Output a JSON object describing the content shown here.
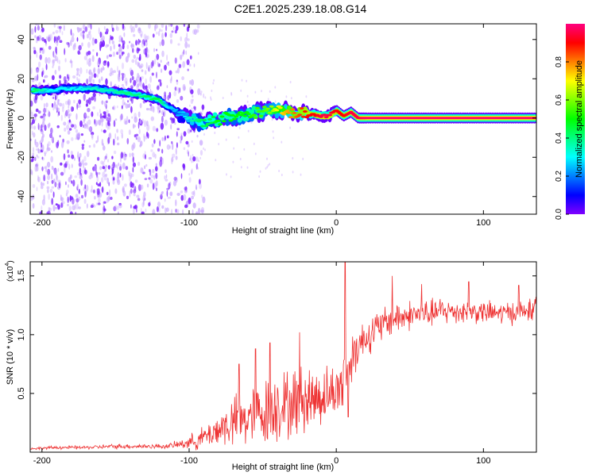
{
  "title": "C2E1.2025.239.18.08.G14",
  "chart_data": [
    {
      "type": "heatmap",
      "name": "spectrogram",
      "xlabel": "Height of straight line (km)",
      "ylabel": "Frequency (Hz)",
      "xlim": [
        -208,
        136
      ],
      "ylim": [
        -49,
        48
      ],
      "xticks": [
        -200,
        -100,
        0,
        100
      ],
      "yticks": [
        -40,
        -20,
        0,
        20,
        40
      ],
      "signal_track": {
        "x": [
          -206,
          -195,
          -185,
          -175,
          -165,
          -155,
          -145,
          -135,
          -125,
          -120,
          -115,
          -110,
          -105,
          -100,
          -95,
          -90,
          -85,
          -80,
          -75,
          -70,
          -65,
          -60,
          -55,
          -50,
          -45,
          -40,
          -35,
          -30,
          -25,
          -20,
          -15,
          -10,
          -5,
          0,
          5,
          10,
          15,
          20,
          40,
          60,
          80,
          100,
          120,
          136
        ],
        "y": [
          14,
          14,
          15,
          15,
          15,
          14,
          13,
          12,
          10,
          9,
          6,
          4,
          1,
          0,
          -2,
          -3,
          -1,
          -1,
          1,
          0,
          1,
          2,
          3,
          3,
          4,
          4,
          4,
          3,
          3,
          2,
          2,
          1,
          1,
          4,
          1,
          3,
          0,
          0,
          0,
          0,
          0,
          0,
          0,
          0
        ],
        "amplitude": [
          0.45,
          0.3,
          0.3,
          0.3,
          0.35,
          0.35,
          0.4,
          0.4,
          0.45,
          0.45,
          0.3,
          0.25,
          0.25,
          0.35,
          0.4,
          0.45,
          0.45,
          0.5,
          0.5,
          0.5,
          0.5,
          0.5,
          0.55,
          0.55,
          0.6,
          0.7,
          0.75,
          0.8,
          0.85,
          0.9,
          0.9,
          0.95,
          0.95,
          0.9,
          0.9,
          0.95,
          0.95,
          0.98,
          0.98,
          0.98,
          0.98,
          0.98,
          0.98,
          0.98
        ]
      },
      "noise_region_x": [
        -208,
        -100
      ],
      "colorbar": {
        "label": "Normalized spectral amplitude",
        "range": [
          0,
          1
        ],
        "ticks": [
          "0.0",
          "0.2",
          "0.4",
          "0.6",
          "0.8"
        ],
        "tick_values": [
          0,
          0.2,
          0.4,
          0.6,
          0.8
        ]
      }
    },
    {
      "type": "line",
      "name": "snr",
      "xlabel": "Height of straight line (km)",
      "ylabel": "SNR (10 * v/v)",
      "scale_label": "(x10",
      "scale_exp": "4",
      "scale_close": ")",
      "xlim": [
        -208,
        136
      ],
      "ylim": [
        0,
        1.62
      ],
      "xticks": [
        -200,
        -100,
        0,
        100
      ],
      "ytick_values": [
        0.5,
        1.0,
        1.5
      ],
      "ytick_labels": [
        "0.5",
        "1.0",
        "1.5"
      ],
      "color": "#ee3333",
      "x": [
        -208,
        -190,
        -170,
        -150,
        -130,
        -115,
        -105,
        -95,
        -88,
        -82,
        -76,
        -70,
        -64,
        -58,
        -52,
        -46,
        -40,
        -34,
        -28,
        -22,
        -16,
        -10,
        -5,
        0,
        3,
        5,
        6,
        8,
        10,
        12,
        14,
        18,
        22,
        28,
        34,
        40,
        48,
        56,
        64,
        72,
        80,
        90,
        100,
        110,
        120,
        128,
        136
      ],
      "values": [
        0.03,
        0.04,
        0.04,
        0.05,
        0.05,
        0.05,
        0.07,
        0.1,
        0.14,
        0.18,
        0.22,
        0.25,
        0.27,
        0.3,
        0.33,
        0.35,
        0.38,
        0.4,
        0.42,
        0.45,
        0.46,
        0.48,
        0.5,
        0.52,
        0.56,
        0.62,
        0.68,
        0.72,
        0.78,
        0.85,
        0.9,
        0.95,
        1.0,
        1.05,
        1.1,
        1.14,
        1.16,
        1.18,
        1.18,
        1.2,
        1.2,
        1.2,
        1.19,
        1.18,
        1.19,
        1.2,
        1.22
      ],
      "spread": [
        0.01,
        0.015,
        0.015,
        0.02,
        0.02,
        0.02,
        0.04,
        0.08,
        0.1,
        0.14,
        0.18,
        0.22,
        0.24,
        0.25,
        0.28,
        0.3,
        0.3,
        0.3,
        0.3,
        0.3,
        0.28,
        0.26,
        0.24,
        0.22,
        0.25,
        0.3,
        0.35,
        0.25,
        0.22,
        0.22,
        0.2,
        0.18,
        0.16,
        0.16,
        0.15,
        0.15,
        0.13,
        0.12,
        0.12,
        0.12,
        0.11,
        0.1,
        0.1,
        0.1,
        0.1,
        0.1,
        0.1
      ],
      "peaks": [
        {
          "x": -66,
          "y": 0.75
        },
        {
          "x": -55,
          "y": 0.88
        },
        {
          "x": -45,
          "y": 0.93
        },
        {
          "x": -40,
          "y": 0.55
        },
        {
          "x": -25,
          "y": 1.02
        },
        {
          "x": 6,
          "y": 1.62
        },
        {
          "x": 8,
          "y": 0.3
        },
        {
          "x": 38,
          "y": 1.5
        },
        {
          "x": 58,
          "y": 1.43
        },
        {
          "x": 90,
          "y": 1.45
        },
        {
          "x": 124,
          "y": 1.42
        }
      ]
    }
  ]
}
